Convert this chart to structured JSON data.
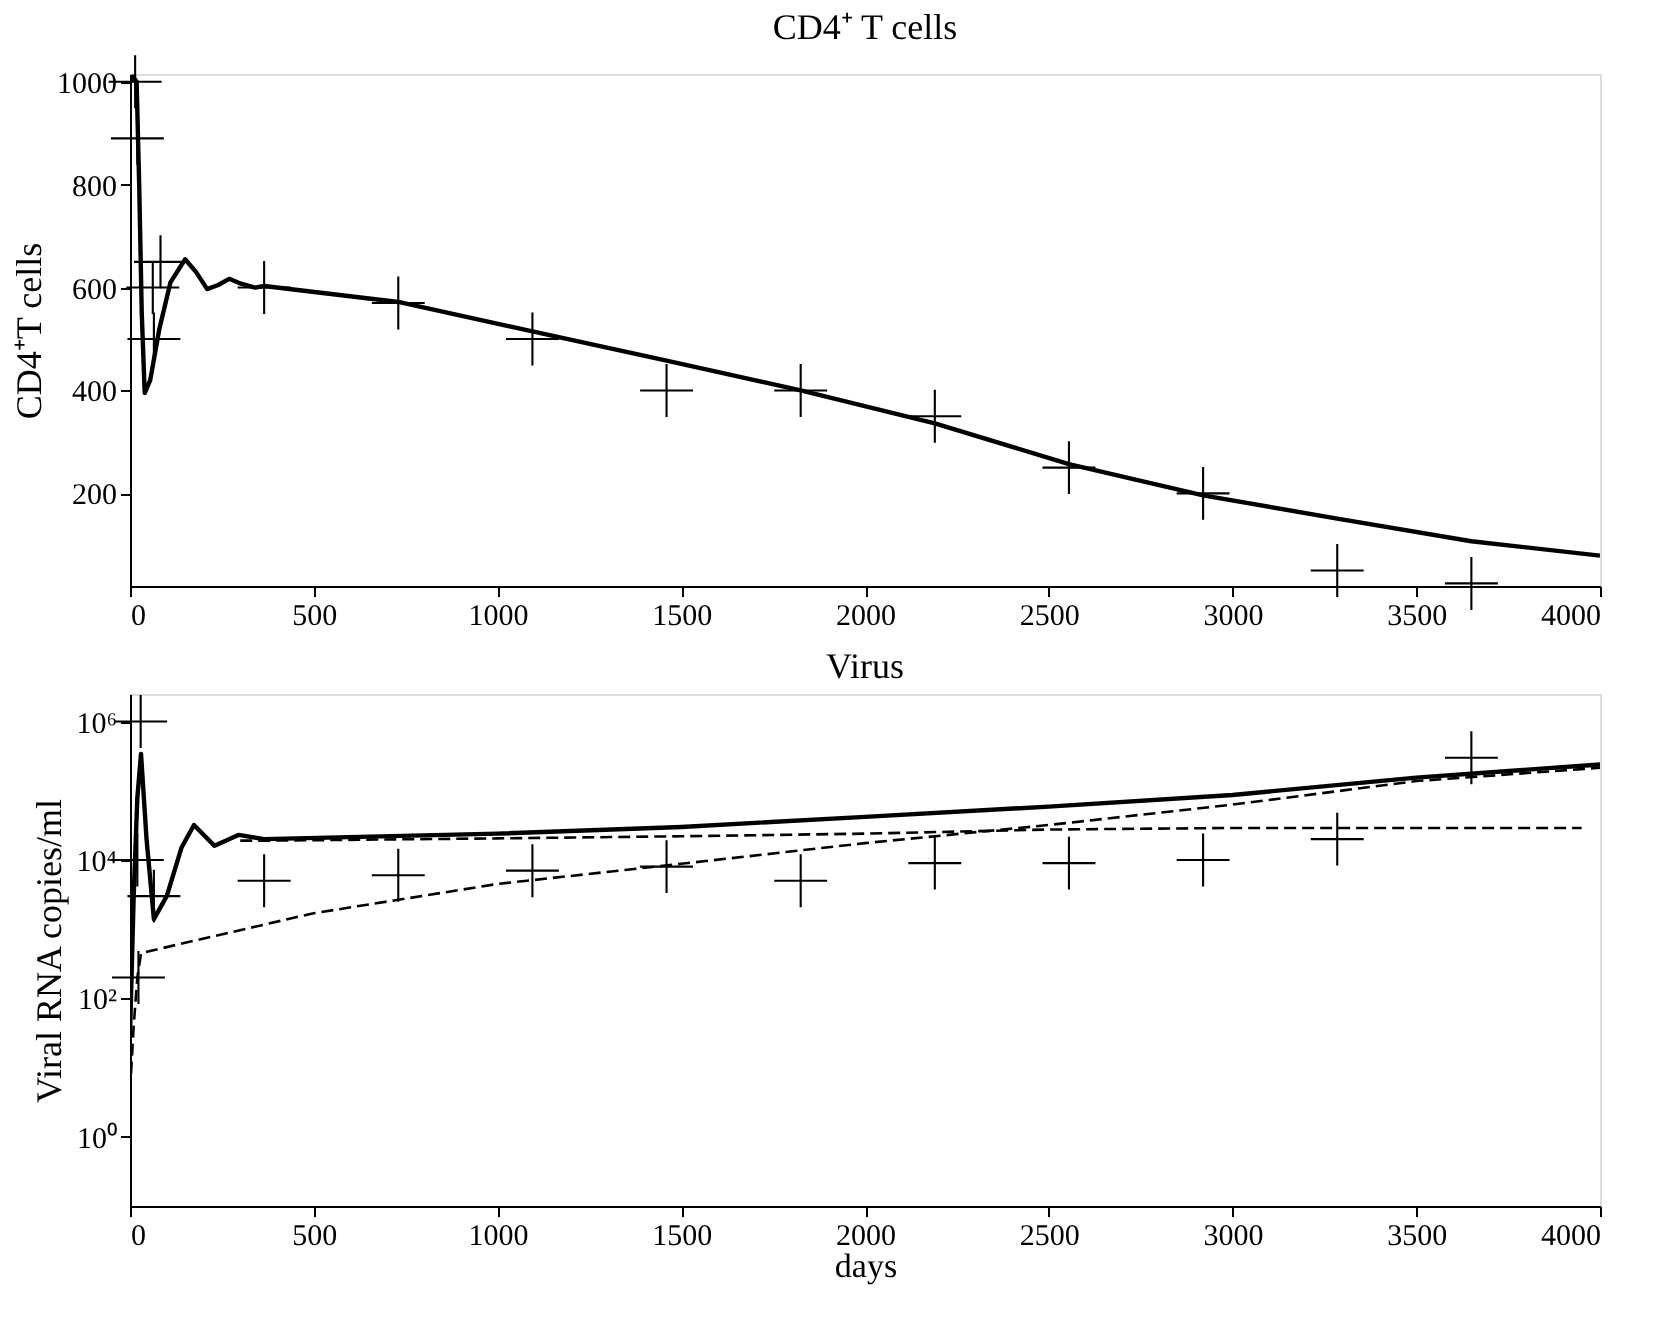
{
  "chart_data": [
    {
      "type": "line",
      "title": "CD4⁺ T cells",
      "ylabel": "CD4⁺T cells",
      "xlim": [
        0,
        4000
      ],
      "ylim": [
        20,
        1015
      ],
      "xticks": [
        0,
        500,
        1000,
        1500,
        2000,
        2500,
        3000,
        3500,
        4000
      ],
      "yticks": [
        200,
        400,
        600,
        800,
        1000
      ],
      "series": [
        {
          "type": "scatter",
          "marker": "cross",
          "color": "#000000",
          "x": [
            14,
            20,
            62,
            65,
            83,
            365,
            730,
            1095,
            1460,
            1825,
            2190,
            2555,
            2920,
            3285,
            3650
          ],
          "values": [
            1000,
            890,
            600,
            500,
            650,
            600,
            570,
            500,
            400,
            400,
            350,
            250,
            200,
            50,
            25
          ]
        },
        {
          "line_style": "solid",
          "color": "#000000",
          "x": [
            0,
            8,
            18,
            25,
            32,
            40,
            55,
            80,
            110,
            150,
            180,
            210,
            240,
            270,
            300,
            340,
            365,
            730,
            1095,
            1460,
            1825,
            2190,
            2555,
            2920,
            3285,
            3650,
            4000
          ],
          "values": [
            1000,
            1010,
            1000,
            800,
            550,
            395,
            420,
            520,
            610,
            655,
            630,
            597,
            605,
            617,
            608,
            600,
            603,
            572,
            515,
            458,
            400,
            336,
            257,
            196,
            151,
            107,
            79
          ]
        }
      ]
    },
    {
      "type": "line",
      "title": "Virus",
      "xlabel": "days",
      "ylabel": "Viral RNA copies/ml",
      "log": true,
      "xlim": [
        0,
        4000
      ],
      "ylim": [
        0.1,
        2500000
      ],
      "xticks": [
        0,
        500,
        1000,
        1500,
        2000,
        2500,
        3000,
        3500,
        4000
      ],
      "yticks": [
        {
          "value": 1,
          "label": "10⁰"
        },
        {
          "value": 100,
          "label": "10²"
        },
        {
          "value": 10000,
          "label": "10⁴"
        },
        {
          "value": 1000000,
          "label": "10⁶"
        }
      ],
      "series": [
        {
          "type": "scatter",
          "marker": "cross",
          "color": "#000000",
          "x": [
            20,
            23,
            29,
            65,
            365,
            730,
            1095,
            1460,
            1825,
            2190,
            2555,
            2920,
            3285,
            3650
          ],
          "values": [
            10000,
            200,
            1000000,
            3000,
            5000,
            6000,
            7000,
            8000,
            5000,
            9000,
            9000,
            10000,
            20000,
            300000
          ]
        },
        {
          "line_style": "solid",
          "color": "#000000",
          "x": [
            0,
            10,
            20,
            30,
            45,
            65,
            100,
            140,
            174,
            230,
            295,
            365,
            1000,
            1500,
            2000,
            2500,
            3000,
            3500,
            4000
          ],
          "values": [
            30,
            3000,
            80000,
            340000,
            20000,
            1400,
            3000,
            15000,
            32000,
            16000,
            23000,
            20000,
            24000,
            30000,
            42000,
            59000,
            87000,
            155000,
            240000
          ]
        },
        {
          "line_style": "dashed",
          "color": "#000000",
          "x": [
            300,
            365,
            1000,
            1500,
            2000,
            2500,
            3000,
            3500,
            3950
          ],
          "values": [
            19000,
            19000,
            20500,
            22000,
            24000,
            27500,
            29000,
            29000,
            29000
          ]
        },
        {
          "line_style": "dashed",
          "color": "#000000",
          "x": [
            0,
            10,
            20,
            30,
            147,
            500,
            1000,
            1500,
            2000,
            2500,
            3000,
            3500,
            4000
          ],
          "values": [
            4.5,
            40,
            200,
            450,
            630,
            1700,
            4500,
            8800,
            17500,
            32000,
            63000,
            138000,
            215000
          ]
        }
      ]
    }
  ]
}
